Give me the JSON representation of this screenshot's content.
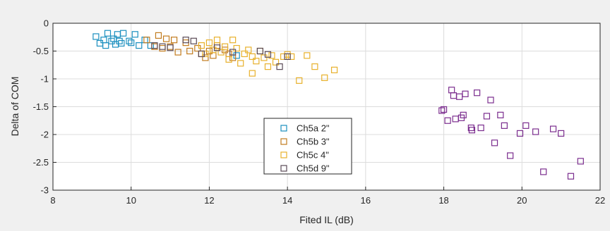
{
  "chart_data": {
    "type": "scatter",
    "xlabel": "Fited IL (dB)",
    "ylabel": "Delta of COM",
    "xlim": [
      8,
      22
    ],
    "ylim": [
      -3,
      0
    ],
    "x_ticks": [
      "8",
      "10",
      "12",
      "14",
      "16",
      "18",
      "20",
      "22"
    ],
    "y_ticks": [
      "0",
      "-0.5",
      "-1",
      "-1.5",
      "-2",
      "-2.5",
      "-3"
    ],
    "grid": true,
    "marker": "open-square",
    "legend_position": "lower-center",
    "series": [
      {
        "name": "Ch5a 2\"",
        "color": "#1b8fbf",
        "points": [
          [
            9.1,
            -0.24
          ],
          [
            9.2,
            -0.36
          ],
          [
            9.3,
            -0.3
          ],
          [
            9.35,
            -0.4
          ],
          [
            9.4,
            -0.18
          ],
          [
            9.5,
            -0.32
          ],
          [
            9.55,
            -0.28
          ],
          [
            9.6,
            -0.38
          ],
          [
            9.65,
            -0.2
          ],
          [
            9.7,
            -0.32
          ],
          [
            9.75,
            -0.36
          ],
          [
            9.8,
            -0.18
          ],
          [
            9.95,
            -0.32
          ],
          [
            10.0,
            -0.35
          ],
          [
            10.1,
            -0.2
          ],
          [
            10.2,
            -0.4
          ],
          [
            10.35,
            -0.3
          ],
          [
            10.5,
            -0.4
          ],
          [
            12.7,
            -0.58
          ]
        ]
      },
      {
        "name": "Ch5b 3\"",
        "color": "#c27c1e",
        "points": [
          [
            10.4,
            -0.3
          ],
          [
            10.6,
            -0.42
          ],
          [
            10.7,
            -0.22
          ],
          [
            10.8,
            -0.45
          ],
          [
            10.9,
            -0.28
          ],
          [
            11.0,
            -0.42
          ],
          [
            11.1,
            -0.3
          ],
          [
            11.2,
            -0.52
          ],
          [
            11.4,
            -0.35
          ],
          [
            11.5,
            -0.5
          ],
          [
            11.7,
            -0.45
          ],
          [
            11.8,
            -0.55
          ],
          [
            11.9,
            -0.62
          ],
          [
            12.0,
            -0.5
          ],
          [
            12.1,
            -0.58
          ],
          [
            12.2,
            -0.4
          ],
          [
            12.4,
            -0.48
          ],
          [
            12.5,
            -0.55
          ],
          [
            12.6,
            -0.62
          ]
        ]
      },
      {
        "name": "Ch5c 4\"",
        "color": "#e8b12c",
        "points": [
          [
            11.8,
            -0.4
          ],
          [
            11.9,
            -0.55
          ],
          [
            12.0,
            -0.35
          ],
          [
            12.1,
            -0.48
          ],
          [
            12.2,
            -0.3
          ],
          [
            12.3,
            -0.52
          ],
          [
            12.4,
            -0.42
          ],
          [
            12.5,
            -0.65
          ],
          [
            12.6,
            -0.3
          ],
          [
            12.7,
            -0.45
          ],
          [
            12.8,
            -0.72
          ],
          [
            12.9,
            -0.55
          ],
          [
            13.0,
            -0.48
          ],
          [
            13.1,
            -0.6
          ],
          [
            13.2,
            -0.68
          ],
          [
            13.3,
            -0.5
          ],
          [
            13.4,
            -0.62
          ],
          [
            13.5,
            -0.78
          ],
          [
            13.6,
            -0.58
          ],
          [
            13.7,
            -0.7
          ],
          [
            13.9,
            -0.6
          ],
          [
            14.0,
            -0.56
          ],
          [
            14.1,
            -0.6
          ],
          [
            14.3,
            -1.03
          ],
          [
            14.5,
            -0.58
          ],
          [
            14.7,
            -0.78
          ],
          [
            14.95,
            -0.98
          ],
          [
            15.2,
            -0.84
          ],
          [
            13.1,
            -0.9
          ]
        ]
      },
      {
        "name": "Ch5d 9\"",
        "color": "#5a4a56",
        "points": [
          [
            10.6,
            -0.4
          ],
          [
            10.8,
            -0.42
          ],
          [
            11.0,
            -0.44
          ],
          [
            11.4,
            -0.3
          ],
          [
            11.6,
            -0.32
          ],
          [
            11.8,
            -0.55
          ],
          [
            12.2,
            -0.44
          ],
          [
            12.6,
            -0.52
          ],
          [
            13.3,
            -0.5
          ],
          [
            13.5,
            -0.56
          ],
          [
            13.8,
            -0.78
          ],
          [
            14.0,
            -0.6
          ]
        ]
      },
      {
        "name": "",
        "color": "#7b2d8e",
        "points": [
          [
            17.95,
            -1.57
          ],
          [
            18.0,
            -1.55
          ],
          [
            18.1,
            -1.75
          ],
          [
            18.2,
            -1.2
          ],
          [
            18.25,
            -1.3
          ],
          [
            18.3,
            -1.72
          ],
          [
            18.4,
            -1.32
          ],
          [
            18.45,
            -1.7
          ],
          [
            18.5,
            -1.65
          ],
          [
            18.55,
            -1.27
          ],
          [
            18.7,
            -1.88
          ],
          [
            18.72,
            -1.92
          ],
          [
            18.85,
            -1.25
          ],
          [
            18.95,
            -1.88
          ],
          [
            19.1,
            -1.67
          ],
          [
            19.2,
            -1.38
          ],
          [
            19.3,
            -2.15
          ],
          [
            19.45,
            -1.65
          ],
          [
            19.55,
            -1.84
          ],
          [
            19.7,
            -2.38
          ],
          [
            19.95,
            -1.98
          ],
          [
            20.1,
            -1.84
          ],
          [
            20.35,
            -1.95
          ],
          [
            20.55,
            -2.67
          ],
          [
            20.8,
            -1.9
          ],
          [
            21.0,
            -1.98
          ],
          [
            21.25,
            -2.75
          ],
          [
            21.5,
            -2.48
          ]
        ]
      }
    ]
  }
}
